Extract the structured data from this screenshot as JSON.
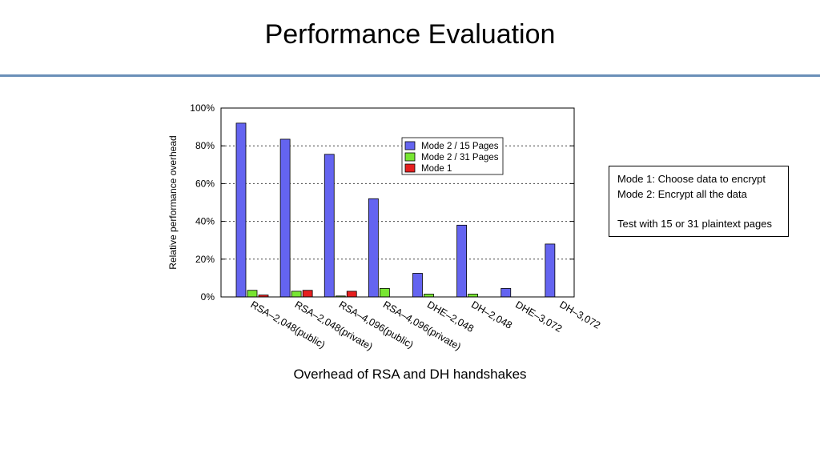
{
  "slide": {
    "title": "Performance Evaluation",
    "caption": "Overhead of RSA and DH handshakes"
  },
  "notes": {
    "lines": [
      "Mode 1: Choose data to encrypt",
      "Mode 2: Encrypt all the data",
      "Test with 15 or 31 plaintext pages"
    ]
  },
  "chart_data": {
    "type": "bar",
    "title": "",
    "xlabel": "",
    "ylabel": "Relative performance overhead",
    "ylim": [
      0,
      100
    ],
    "yticks": [
      "0%",
      "20%",
      "40%",
      "60%",
      "80%",
      "100%"
    ],
    "grid": true,
    "legend_position": "top-right",
    "categories": [
      "RSA–2,048(public)",
      "RSA–2,048(private)",
      "RSA–4,096(public)",
      "RSA–4,096(private)",
      "DHE–2,048",
      "DH–2,048",
      "DHE–3,072",
      "DH–3,072"
    ],
    "series": [
      {
        "name": "Mode 2 / 15 Pages",
        "color": "#6464f0",
        "values": [
          92,
          83.5,
          75.5,
          52,
          12.5,
          38,
          4.5,
          28
        ]
      },
      {
        "name": "Mode 2 / 31 Pages",
        "color": "#78e632",
        "values": [
          3.5,
          3,
          0.5,
          4.5,
          1.5,
          1.5,
          0,
          0
        ]
      },
      {
        "name": "Mode 1",
        "color": "#e61e1e",
        "values": [
          1,
          3.5,
          3,
          0,
          0,
          0,
          0,
          0
        ]
      }
    ]
  }
}
